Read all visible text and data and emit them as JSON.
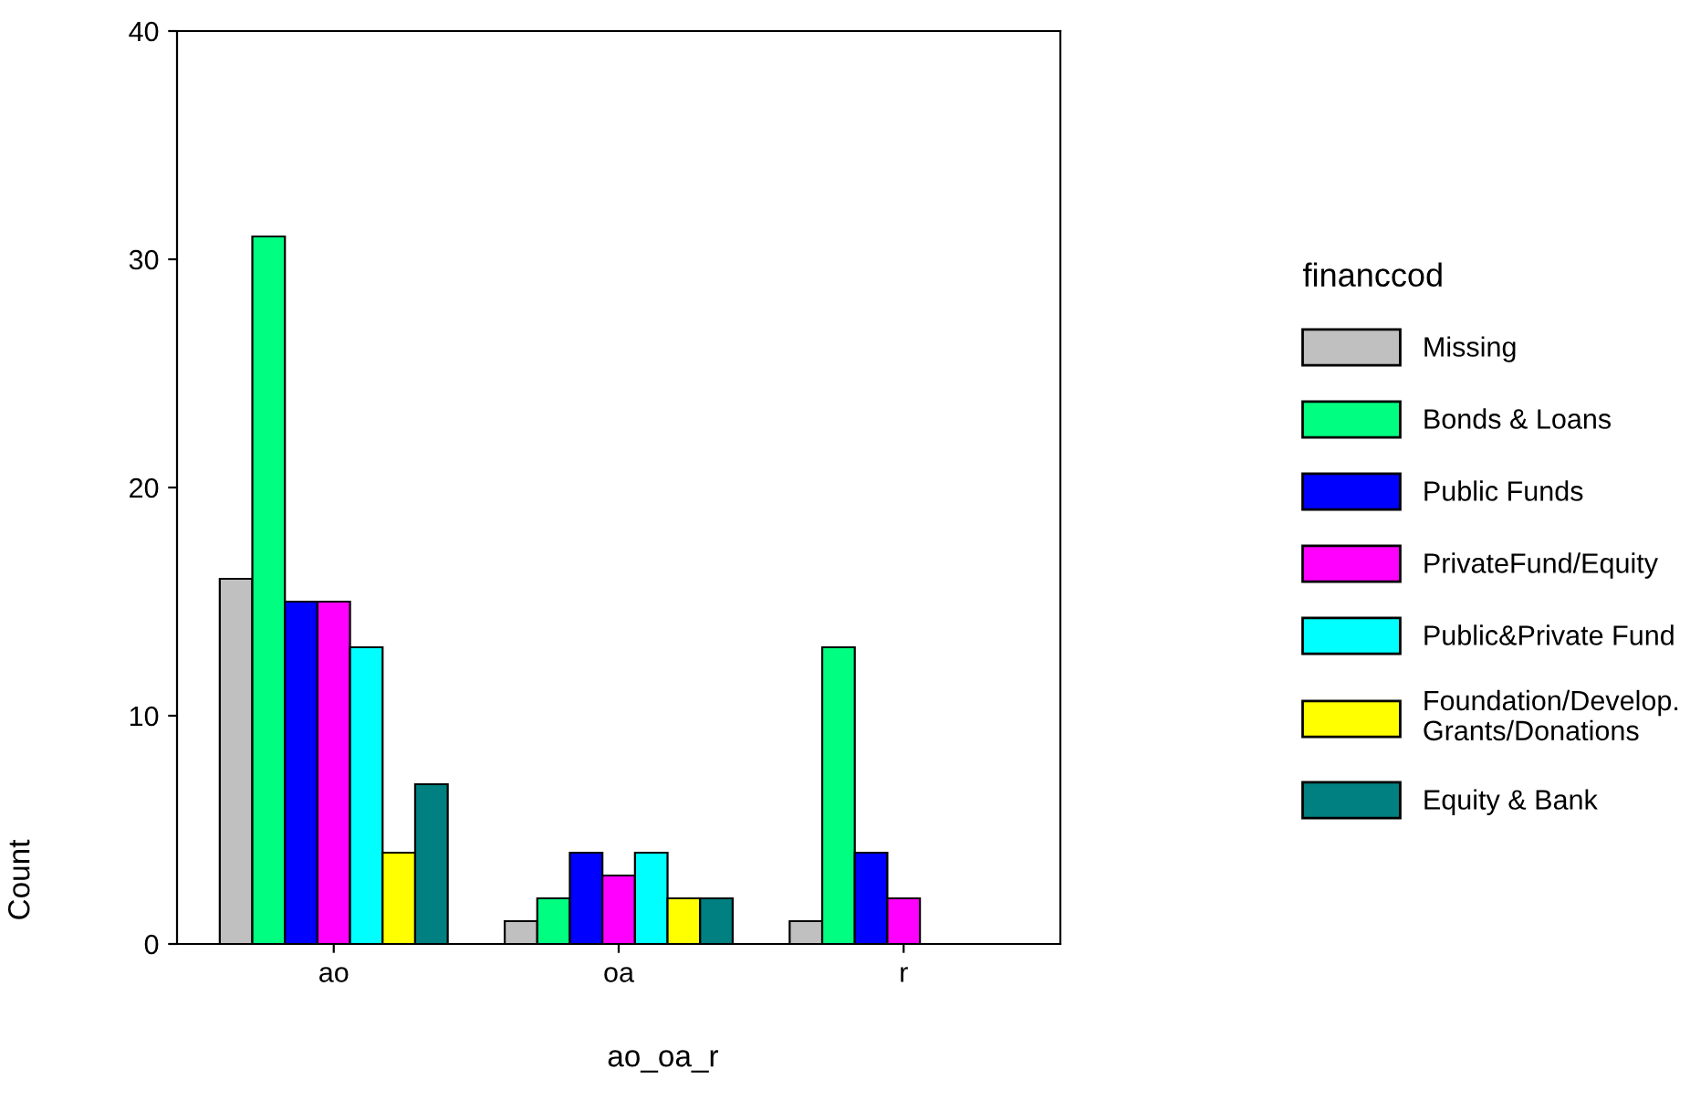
{
  "chart_data": {
    "type": "bar",
    "xlabel": "ao_oa_r",
    "ylabel": "Count",
    "legend_title": "financcod",
    "categories": [
      "ao",
      "oa",
      "r"
    ],
    "series": [
      {
        "name": "Missing",
        "color": "#c0c0c0",
        "values": [
          16,
          1,
          1
        ]
      },
      {
        "name": "Bonds & Loans",
        "color": "#00ff80",
        "values": [
          31,
          2,
          13
        ]
      },
      {
        "name": "Public Funds",
        "color": "#0000ff",
        "values": [
          15,
          4,
          4
        ]
      },
      {
        "name": "PrivateFund/Equity",
        "color": "#ff00ff",
        "values": [
          15,
          3,
          2
        ]
      },
      {
        "name": "Public&Private Fund",
        "color": "#00ffff",
        "values": [
          13,
          4,
          0
        ]
      },
      {
        "name": "Foundation/Develop.\nGrants/Donations",
        "color": "#ffff00",
        "values": [
          4,
          2,
          0
        ]
      },
      {
        "name": "Equity & Bank",
        "color": "#008080",
        "values": [
          7,
          2,
          0
        ]
      }
    ],
    "ylim": [
      0,
      40
    ],
    "yticks": [
      0,
      10,
      20,
      30,
      40
    ],
    "grid": false,
    "legend": "right"
  }
}
